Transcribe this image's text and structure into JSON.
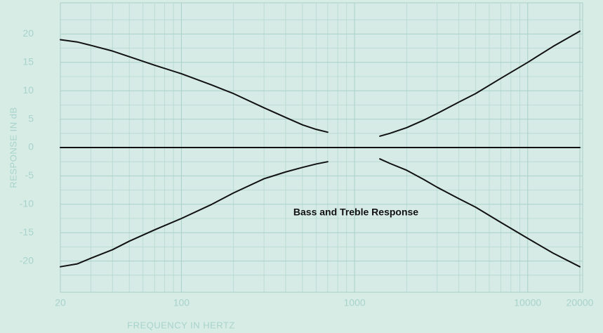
{
  "chart_data": {
    "type": "line",
    "annotation": "Bass and Treble Response",
    "xlabel": "FREQUENCY IN HERTZ",
    "ylabel": "RESPONSE IN dB",
    "xscale": "log",
    "xlim": [
      20,
      20000
    ],
    "ylim": [
      -25,
      25
    ],
    "xticks": [
      20,
      100,
      1000,
      10000,
      20000
    ],
    "yticks": [
      20,
      15,
      10,
      5,
      0,
      -5,
      -10,
      -15,
      -20
    ],
    "x_minor_grid": [
      30,
      40,
      50,
      60,
      70,
      80,
      90,
      200,
      300,
      400,
      500,
      600,
      700,
      800,
      900,
      2000,
      3000,
      4000,
      5000,
      6000,
      7000,
      8000,
      9000
    ],
    "y_minor_grid": [
      22.5,
      17.5,
      12.5,
      7.5,
      2.5,
      -2.5,
      -7.5,
      -12.5,
      -17.5,
      -22.5
    ],
    "grid": true,
    "series": [
      {
        "color": "#111111",
        "x": [
          20,
          25,
          30,
          40,
          50,
          70,
          100,
          150,
          200,
          300,
          400,
          500,
          600,
          700
        ],
        "values": [
          19,
          18.6,
          18,
          17,
          16,
          14.5,
          13,
          11,
          9.5,
          7,
          5.3,
          4,
          3.2,
          2.7
        ]
      },
      {
        "color": "#111111",
        "x": [
          20,
          25,
          30,
          40,
          50,
          70,
          100,
          150,
          200,
          300,
          400,
          500,
          600,
          700
        ],
        "values": [
          -21,
          -20.5,
          -19.5,
          -18,
          -16.5,
          -14.5,
          -12.5,
          -10,
          -8,
          -5.5,
          -4.3,
          -3.5,
          -2.9,
          -2.5
        ]
      },
      {
        "color": "#111111",
        "x": [
          20,
          20000
        ],
        "values": [
          0,
          0
        ]
      },
      {
        "color": "#111111",
        "x": [
          1400,
          1600,
          2000,
          2500,
          3000,
          4000,
          5000,
          7000,
          10000,
          14000,
          20000
        ],
        "values": [
          2,
          2.5,
          3.5,
          4.8,
          6,
          8,
          9.5,
          12.2,
          15,
          17.8,
          20.5
        ]
      },
      {
        "color": "#111111",
        "x": [
          1400,
          1600,
          2000,
          2500,
          3000,
          4000,
          5000,
          7000,
          10000,
          14000,
          20000
        ],
        "values": [
          -2,
          -2.8,
          -4,
          -5.6,
          -7,
          -9,
          -10.5,
          -13.2,
          -16,
          -18.6,
          -21
        ]
      }
    ]
  }
}
